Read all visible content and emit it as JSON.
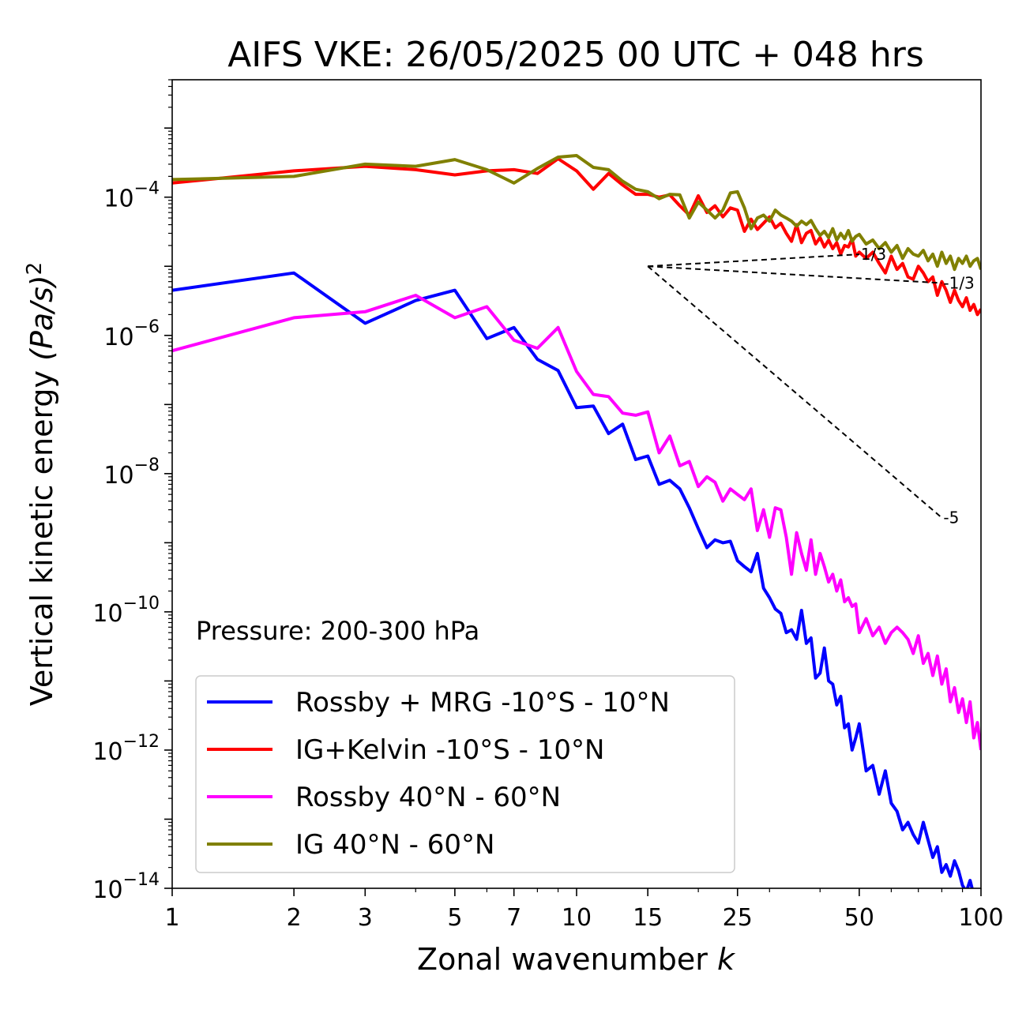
{
  "chart_data": {
    "type": "line",
    "title": "AIFS VKE: 26/05/2025 00 UTC + 048 hrs",
    "xlabel": "Zonal wavenumber",
    "xlabel_var": "k",
    "ylabel": "Vertical kinetic energy",
    "ylabel_math": "(Pa/s)",
    "ylabel_exp": "2",
    "xscale": "log",
    "yscale": "log",
    "xlim": [
      1,
      100
    ],
    "ylim": [
      1e-14,
      0.005
    ],
    "xticks": [
      1,
      2,
      3,
      5,
      7,
      10,
      15,
      25,
      50,
      100
    ],
    "xtick_labels": [
      "1",
      "2",
      "3",
      "5",
      "7",
      "10",
      "15",
      "25",
      "50",
      "100"
    ],
    "yticks": [
      -14,
      -12,
      -10,
      -8,
      -6,
      -4
    ],
    "ytick_base": "10",
    "ytick_exps": [
      "−14",
      "−12",
      "−10",
      "−8",
      "−6",
      "−4"
    ],
    "annotation": "Pressure: 200-300 hPa",
    "legend_position": "lower-left",
    "grid": false,
    "reference_slopes": [
      {
        "label": "1/3",
        "x": [
          15,
          50
        ],
        "y": [
          1e-05,
          1.49e-05
        ]
      },
      {
        "label": "-1/3",
        "x": [
          15,
          80
        ],
        "y": [
          1e-05,
          5.72e-06
        ]
      },
      {
        "label": "-5",
        "x": [
          15,
          80
        ],
        "y": [
          1e-05,
          2.3e-09
        ]
      }
    ],
    "series": [
      {
        "name": "Rossby + MRG -10°S - 10°N",
        "color": "#0000ff",
        "x": [
          1,
          2,
          3,
          4,
          5,
          6,
          7,
          8,
          9,
          10,
          11,
          12,
          13,
          14,
          15,
          16,
          17,
          18,
          19,
          20,
          21,
          22,
          23,
          24,
          25,
          26,
          27,
          28,
          29,
          30,
          31,
          32,
          33,
          34,
          35,
          36,
          37,
          38,
          39,
          40,
          41,
          42,
          43,
          44,
          45,
          46,
          47,
          48,
          49,
          50,
          52,
          54,
          56,
          58,
          60,
          62,
          64,
          66,
          68,
          70,
          72,
          74,
          76,
          78,
          80,
          82,
          84,
          86,
          88,
          90,
          92,
          94,
          96,
          98,
          100
        ],
        "y": [
          4.5e-06,
          8e-06,
          1.5e-06,
          3.2e-06,
          4.5e-06,
          9e-07,
          1.3e-06,
          4.5e-07,
          3.1e-07,
          9e-08,
          9.5e-08,
          3.8e-08,
          5.2e-08,
          1.6e-08,
          1.8e-08,
          7e-09,
          8e-09,
          6e-09,
          3.2e-09,
          1.6e-09,
          8.5e-10,
          1.1e-09,
          1e-09,
          1.05e-09,
          5.5e-10,
          4.5e-10,
          3.8e-10,
          7e-10,
          2.2e-10,
          1.6e-10,
          1.1e-10,
          9.5e-11,
          5e-11,
          5.5e-11,
          4e-11,
          1.05e-10,
          3.5e-11,
          4.2e-11,
          1.1e-11,
          1.3e-11,
          3e-11,
          1e-11,
          9e-12,
          4.5e-12,
          6e-12,
          2.1e-12,
          2.4e-12,
          1e-12,
          1.5e-12,
          2.4e-12,
          5e-13,
          6e-13,
          2.3e-13,
          5e-13,
          1.7e-13,
          1.3e-13,
          7e-14,
          9e-14,
          6e-14,
          4.5e-14,
          9e-14,
          5e-14,
          2.8e-14,
          4e-14,
          1.7e-14,
          2.2e-14,
          1.5e-14,
          2.5e-14,
          1.8e-14,
          1.1e-14,
          9e-15,
          1.3e-14,
          8e-15,
          9e-15,
          8e-15
        ]
      },
      {
        "name": "IG+Kelvin -10°S - 10°N",
        "color": "#ff0000",
        "x": [
          1,
          2,
          3,
          4,
          5,
          6,
          7,
          8,
          9,
          10,
          11,
          12,
          13,
          14,
          15,
          16,
          17,
          18,
          19,
          20,
          21,
          22,
          23,
          24,
          25,
          26,
          27,
          28,
          29,
          30,
          31,
          32,
          33,
          34,
          35,
          36,
          37,
          38,
          39,
          40,
          41,
          42,
          43,
          44,
          45,
          46,
          47,
          48,
          49,
          50,
          52,
          54,
          56,
          58,
          60,
          62,
          64,
          66,
          68,
          70,
          72,
          74,
          76,
          78,
          80,
          82,
          84,
          86,
          88,
          90,
          92,
          94,
          96,
          98,
          100
        ],
        "y": [
          0.00016,
          0.00024,
          0.00028,
          0.00025,
          0.00021,
          0.00024,
          0.00025,
          0.00022,
          0.00036,
          0.00024,
          0.00013,
          0.00022,
          0.00015,
          0.00011,
          0.00011,
          0.0001,
          0.000108,
          7.5e-05,
          5.5e-05,
          0.000105,
          6e-05,
          7.5e-05,
          5.2e-05,
          7e-05,
          6.5e-05,
          3.2e-05,
          4.8e-05,
          3.4e-05,
          4.2e-05,
          5.2e-05,
          3.6e-05,
          4.2e-05,
          3e-05,
          2.3e-05,
          4e-05,
          2.2e-05,
          3e-05,
          3.3e-05,
          2.1e-05,
          2.6e-05,
          1.9e-05,
          2.4e-05,
          1.8e-05,
          2.2e-05,
          1.5e-05,
          2e-05,
          1.9e-05,
          2.5e-05,
          1.4e-05,
          1.6e-05,
          1.3e-05,
          1.6e-05,
          1.1e-05,
          8e-06,
          1.4e-05,
          9e-06,
          1.1e-05,
          7e-06,
          6.5e-06,
          1e-05,
          8e-06,
          6e-06,
          7e-06,
          3.8e-06,
          6e-06,
          4.5e-06,
          3e-06,
          4.5e-06,
          3.2e-06,
          2.6e-06,
          3.5e-06,
          2.3e-06,
          2.8e-06,
          2e-06,
          2.4e-06
        ]
      },
      {
        "name": "Rossby 40°N - 60°N",
        "color": "#ff00ff",
        "x": [
          1,
          2,
          3,
          4,
          5,
          6,
          7,
          8,
          9,
          10,
          11,
          12,
          13,
          14,
          15,
          16,
          17,
          18,
          19,
          20,
          21,
          22,
          23,
          24,
          25,
          26,
          27,
          28,
          29,
          30,
          31,
          32,
          33,
          34,
          35,
          36,
          37,
          38,
          39,
          40,
          41,
          42,
          43,
          44,
          45,
          46,
          47,
          48,
          49,
          50,
          52,
          54,
          56,
          58,
          60,
          62,
          64,
          66,
          68,
          70,
          72,
          74,
          76,
          78,
          80,
          82,
          84,
          86,
          88,
          90,
          92,
          94,
          96,
          98,
          100
        ],
        "y": [
          6e-07,
          1.8e-06,
          2.2e-06,
          3.8e-06,
          1.8e-06,
          2.6e-06,
          8.5e-07,
          6.5e-07,
          1.3e-06,
          3e-07,
          1.4e-07,
          1.3e-07,
          7.5e-08,
          7e-08,
          7.8e-08,
          2e-08,
          3.5e-08,
          1.3e-08,
          1.5e-08,
          6.5e-09,
          9e-09,
          7.5e-09,
          4e-09,
          6e-09,
          5e-09,
          4.2e-09,
          6e-09,
          1.5e-09,
          3e-09,
          1.2e-09,
          3.2e-09,
          3e-09,
          1.2e-09,
          3.5e-10,
          1.4e-09,
          7e-10,
          4e-10,
          1.1e-09,
          3.5e-10,
          7e-10,
          4.5e-10,
          2.7e-10,
          3.5e-10,
          2e-10,
          2.9e-10,
          1.4e-10,
          1.6e-10,
          1.2e-10,
          1.3e-10,
          5e-11,
          8e-11,
          4.5e-11,
          6e-11,
          3.5e-11,
          5e-11,
          6e-11,
          5e-11,
          4e-11,
          2.5e-11,
          4.5e-11,
          1.8e-11,
          2.5e-11,
          1.2e-11,
          2.3e-11,
          9e-12,
          1.5e-11,
          5e-12,
          8e-12,
          3.5e-12,
          5.5e-12,
          2.5e-12,
          5e-12,
          1.5e-12,
          2.5e-12,
          1e-12
        ]
      },
      {
        "name": "IG 40°N - 60°N",
        "color": "#808000",
        "x": [
          1,
          2,
          3,
          4,
          5,
          6,
          7,
          8,
          9,
          10,
          11,
          12,
          13,
          14,
          15,
          16,
          17,
          18,
          19,
          20,
          21,
          22,
          23,
          24,
          25,
          26,
          27,
          28,
          29,
          30,
          31,
          32,
          33,
          34,
          35,
          36,
          37,
          38,
          39,
          40,
          41,
          42,
          43,
          44,
          45,
          46,
          47,
          48,
          49,
          50,
          52,
          54,
          56,
          58,
          60,
          62,
          64,
          66,
          68,
          70,
          72,
          74,
          76,
          78,
          80,
          82,
          84,
          86,
          88,
          90,
          92,
          94,
          96,
          98,
          100
        ],
        "y": [
          0.00018,
          0.0002,
          0.0003,
          0.00028,
          0.00035,
          0.00025,
          0.00016,
          0.00026,
          0.00038,
          0.0004,
          0.00027,
          0.00025,
          0.00017,
          0.00013,
          0.00012,
          9.5e-05,
          0.00011,
          0.000108,
          5e-05,
          8.5e-05,
          6.5e-05,
          5e-05,
          6.5e-05,
          0.000115,
          0.00012,
          7e-05,
          3.5e-05,
          5e-05,
          5.5e-05,
          4.5e-05,
          6.5e-05,
          5.5e-05,
          5e-05,
          4.5e-05,
          3.8e-05,
          4.5e-05,
          4e-05,
          4.6e-05,
          3.5e-05,
          2.8e-05,
          3.2e-05,
          2.6e-05,
          3.5e-05,
          2.4e-05,
          3e-05,
          2.5e-05,
          3.3e-05,
          2.3e-05,
          2.7e-05,
          2.9e-05,
          2.1e-05,
          2.4e-05,
          1.8e-05,
          2.2e-05,
          1.6e-05,
          2e-05,
          1.3e-05,
          1.8e-05,
          1.5e-05,
          1.4e-05,
          1.7e-05,
          1.2e-05,
          1.5e-05,
          1e-05,
          1.6e-05,
          1.1e-05,
          1.4e-05,
          9e-06,
          1.3e-05,
          1.1e-05,
          1.4e-05,
          1e-05,
          1.2e-05,
          1.3e-05,
          9e-06
        ]
      }
    ]
  }
}
